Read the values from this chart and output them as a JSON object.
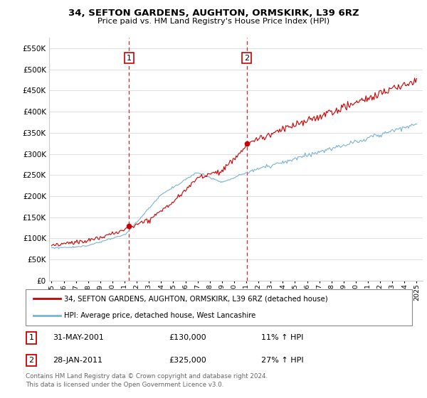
{
  "title": "34, SEFTON GARDENS, AUGHTON, ORMSKIRK, L39 6RZ",
  "subtitle": "Price paid vs. HM Land Registry's House Price Index (HPI)",
  "legend_line1": "34, SEFTON GARDENS, AUGHTON, ORMSKIRK, L39 6RZ (detached house)",
  "legend_line2": "HPI: Average price, detached house, West Lancashire",
  "sale1_date": "31-MAY-2001",
  "sale1_price": "£130,000",
  "sale1_hpi": "11% ↑ HPI",
  "sale2_date": "28-JAN-2011",
  "sale2_price": "£325,000",
  "sale2_hpi": "27% ↑ HPI",
  "footer": "Contains HM Land Registry data © Crown copyright and database right 2024.\nThis data is licensed under the Open Government Licence v3.0.",
  "hpi_color": "#7ab3d4",
  "price_color": "#cc0000",
  "vline_color": "#cc0000",
  "ylim_max": 575000,
  "yticks": [
    0,
    50000,
    100000,
    150000,
    200000,
    250000,
    300000,
    350000,
    400000,
    450000,
    500000,
    550000
  ],
  "sale1_year": 2001.37,
  "sale2_year": 2011.04,
  "sale1_price_val": 130000,
  "sale2_price_val": 325000
}
